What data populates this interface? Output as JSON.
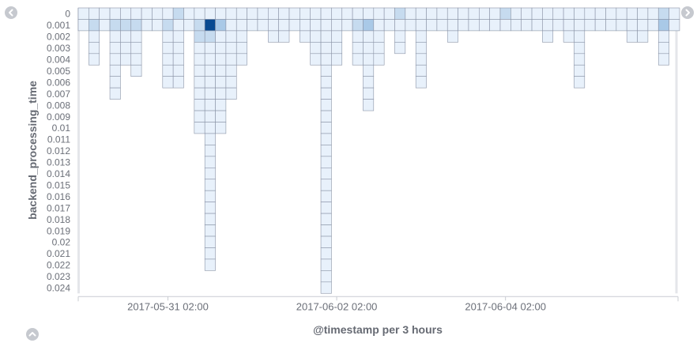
{
  "nav": {
    "left_icon": "chevron-left-icon",
    "right_icon": "chevron-right-icon",
    "toggle_icon": "chevron-up-icon"
  },
  "colors": {
    "cell_stroke": "#8a93a6",
    "level_1": "#e8f1fb",
    "level_2": "#c6dbef",
    "level_3": "#a9c9e7",
    "level_max": "#084a91",
    "axis_text": "#6b6f78",
    "axis_title": "#666a73"
  },
  "chart_data": {
    "type": "heatmap",
    "xlabel": "@timestamp per 3 hours",
    "ylabel": "backend_processing_time",
    "x_tick_labels": [
      "2017-05-31 02:00",
      "2017-06-02 02:00",
      "2017-06-04 02:00"
    ],
    "x_tick_columns": [
      8,
      24,
      40
    ],
    "x_bins": 57,
    "x_interval": "3 hours",
    "y_categories": [
      "0",
      "0.001",
      "0.002",
      "0.003",
      "0.004",
      "0.005",
      "0.006",
      "0.007",
      "0.008",
      "0.009",
      "0.01",
      "0.011",
      "0.012",
      "0.013",
      "0.014",
      "0.015",
      "0.016",
      "0.017",
      "0.018",
      "0.019",
      "0.02",
      "0.021",
      "0.022",
      "0.023",
      "0.024"
    ],
    "cell_note": "columns: [column_index, start_row, end_row]; every row in range is filled with the lightest level unless overridden in highlights",
    "columns": [
      [
        0,
        0,
        1
      ],
      [
        1,
        0,
        4
      ],
      [
        2,
        0,
        1
      ],
      [
        3,
        0,
        7
      ],
      [
        4,
        0,
        4
      ],
      [
        5,
        0,
        5
      ],
      [
        6,
        0,
        1
      ],
      [
        7,
        0,
        1
      ],
      [
        8,
        0,
        6
      ],
      [
        9,
        0,
        6
      ],
      [
        10,
        0,
        1
      ],
      [
        11,
        0,
        10
      ],
      [
        12,
        0,
        22
      ],
      [
        13,
        0,
        10
      ],
      [
        14,
        0,
        7
      ],
      [
        15,
        0,
        4
      ],
      [
        16,
        0,
        1
      ],
      [
        17,
        0,
        1
      ],
      [
        18,
        0,
        2
      ],
      [
        19,
        0,
        2
      ],
      [
        20,
        0,
        1
      ],
      [
        21,
        0,
        2
      ],
      [
        22,
        0,
        4
      ],
      [
        23,
        0,
        24
      ],
      [
        24,
        0,
        4
      ],
      [
        25,
        0,
        1
      ],
      [
        26,
        0,
        4
      ],
      [
        27,
        0,
        8
      ],
      [
        28,
        0,
        4
      ],
      [
        29,
        0,
        1
      ],
      [
        30,
        0,
        3
      ],
      [
        31,
        0,
        1
      ],
      [
        32,
        0,
        6
      ],
      [
        33,
        0,
        1
      ],
      [
        34,
        0,
        1
      ],
      [
        35,
        0,
        2
      ],
      [
        36,
        0,
        1
      ],
      [
        37,
        0,
        1
      ],
      [
        38,
        0,
        1
      ],
      [
        39,
        0,
        1
      ],
      [
        40,
        0,
        1
      ],
      [
        41,
        0,
        1
      ],
      [
        42,
        0,
        1
      ],
      [
        43,
        0,
        1
      ],
      [
        44,
        0,
        2
      ],
      [
        45,
        0,
        1
      ],
      [
        46,
        0,
        2
      ],
      [
        47,
        0,
        6
      ],
      [
        48,
        0,
        1
      ],
      [
        49,
        0,
        1
      ],
      [
        50,
        0,
        1
      ],
      [
        51,
        0,
        1
      ],
      [
        52,
        0,
        2
      ],
      [
        53,
        0,
        2
      ],
      [
        54,
        0,
        1
      ],
      [
        55,
        0,
        4
      ],
      [
        56,
        0,
        1
      ]
    ],
    "highlights": [
      [
        1,
        1,
        2
      ],
      [
        3,
        1,
        2
      ],
      [
        4,
        1,
        2
      ],
      [
        5,
        1,
        2
      ],
      [
        8,
        1,
        2
      ],
      [
        9,
        0,
        2
      ],
      [
        11,
        1,
        2
      ],
      [
        11,
        2,
        2
      ],
      [
        12,
        1,
        4
      ],
      [
        12,
        2,
        2
      ],
      [
        13,
        1,
        3
      ],
      [
        26,
        1,
        2
      ],
      [
        27,
        1,
        3
      ],
      [
        30,
        0,
        2
      ],
      [
        40,
        0,
        2
      ],
      [
        55,
        0,
        2
      ],
      [
        55,
        1,
        3
      ]
    ],
    "highlight_note": "highlights: [column_index, row_index, level] where level 2/3 = medium blues, 4 = darkest (max count)"
  }
}
